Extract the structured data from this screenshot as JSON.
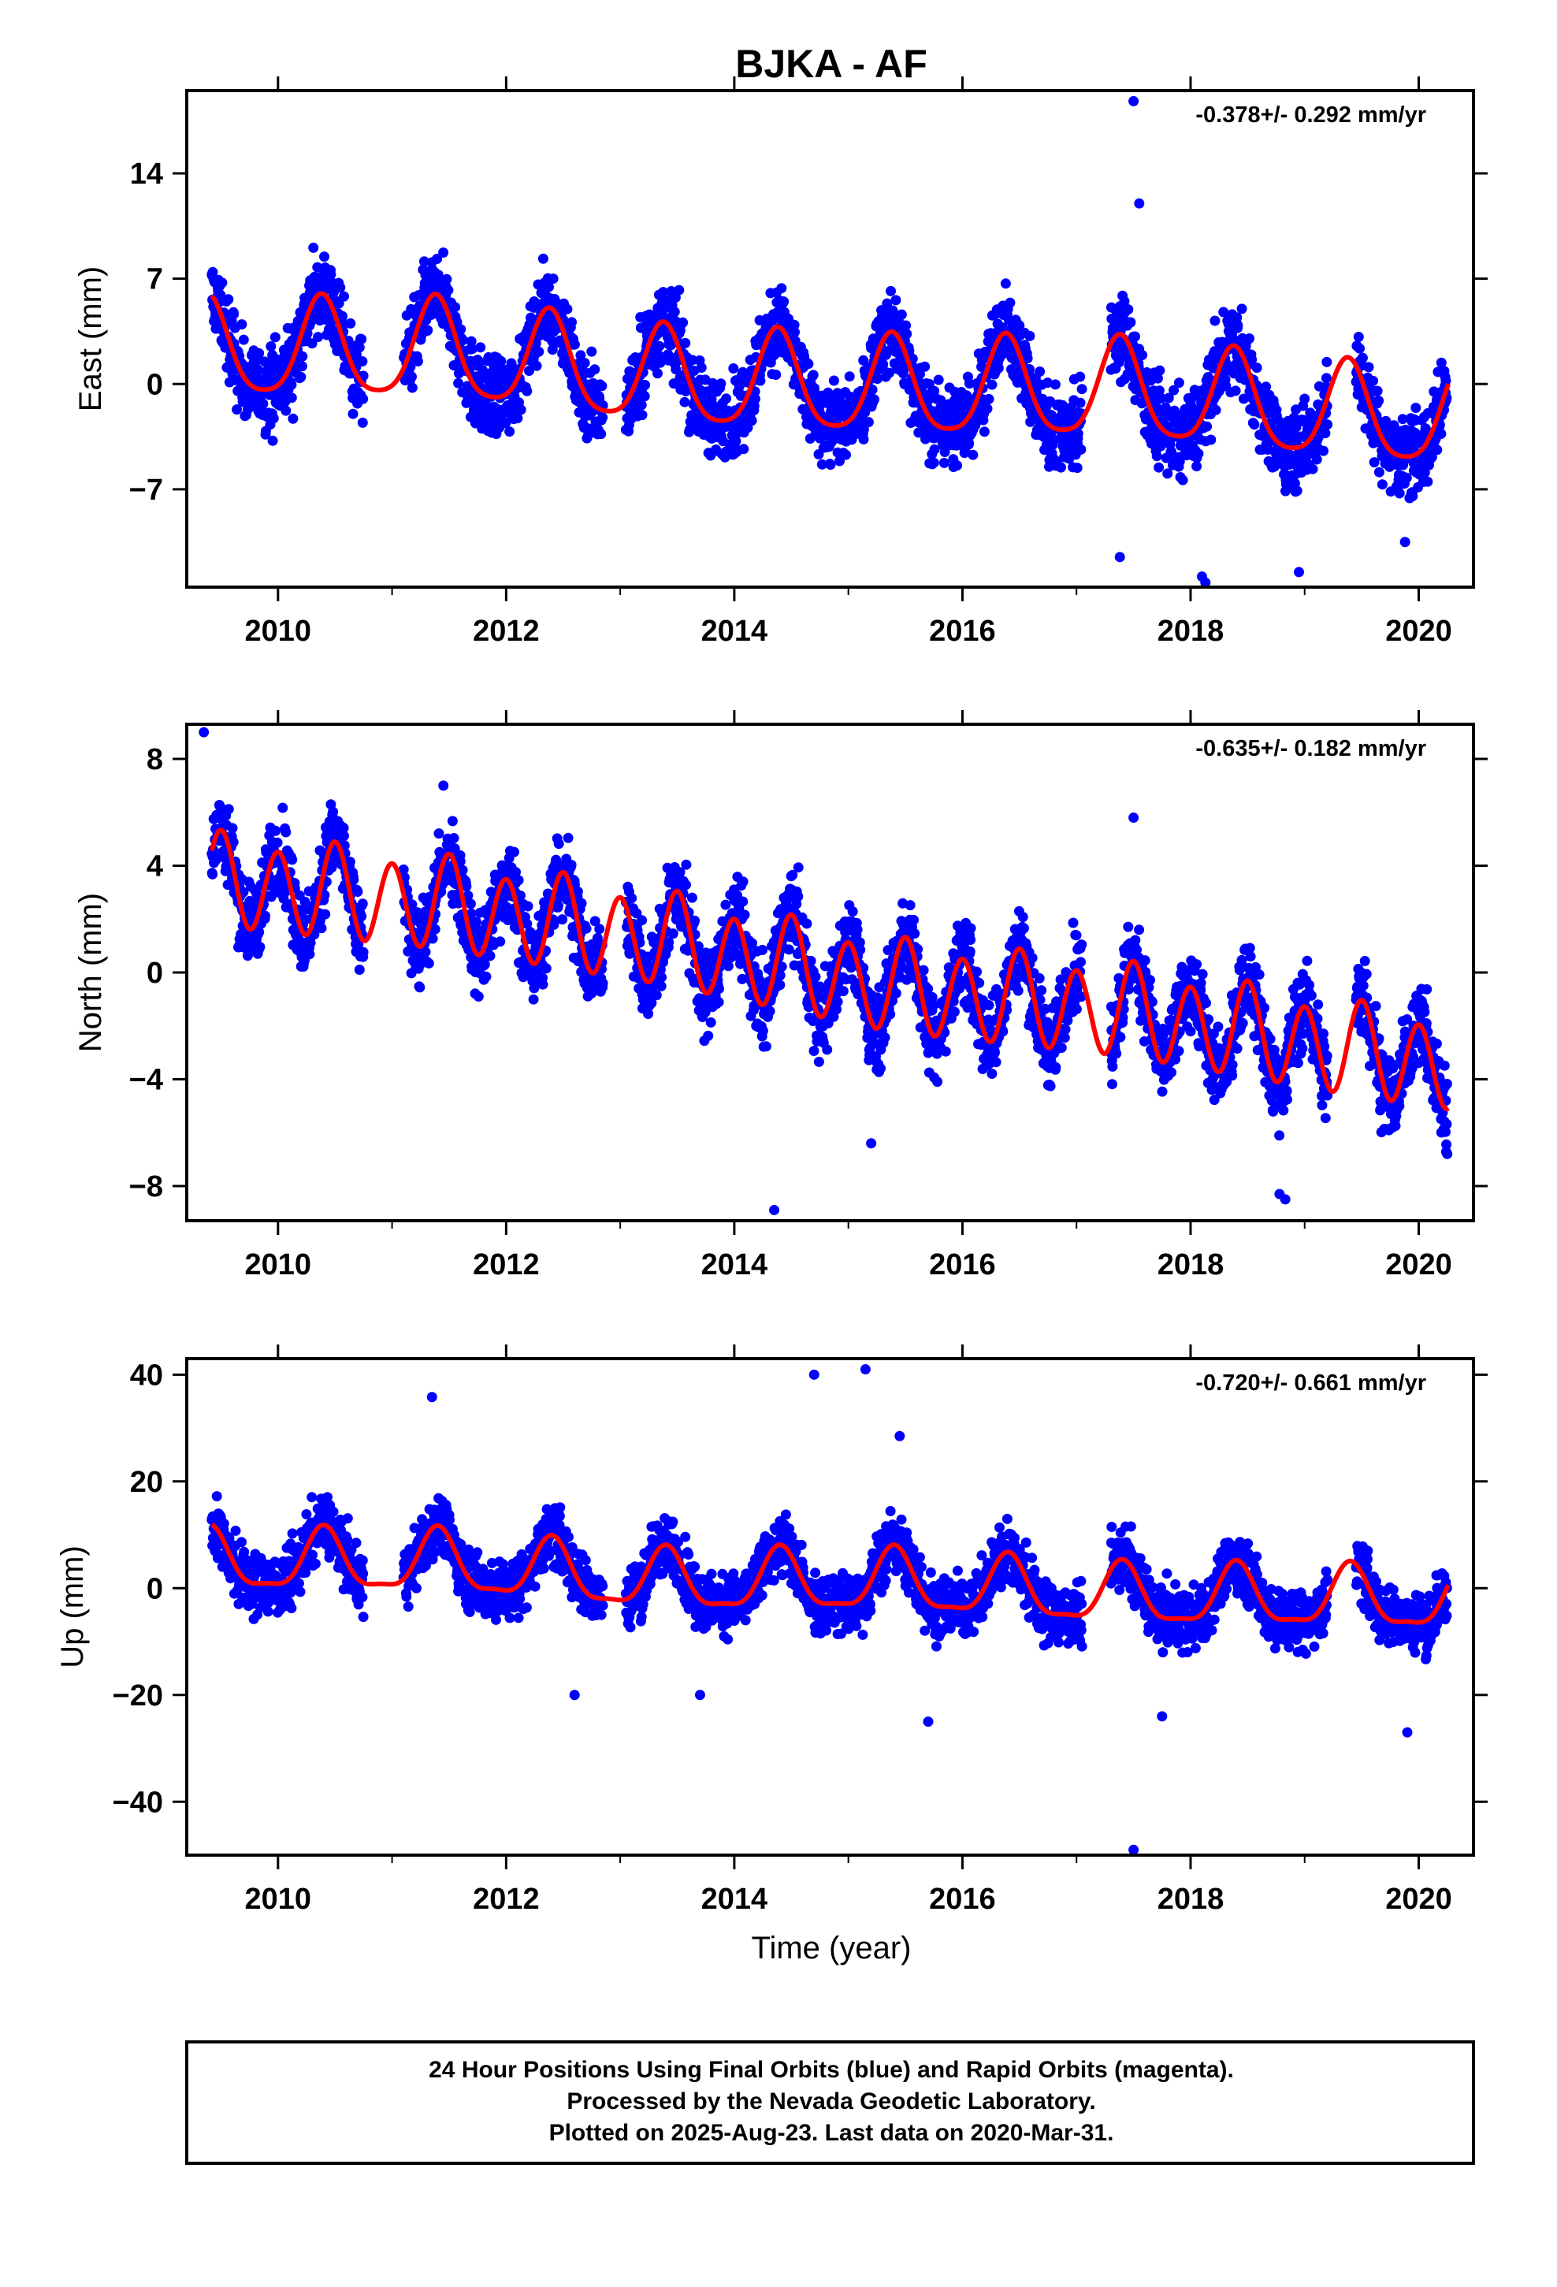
{
  "title": "BJKA - AF",
  "x_axis_label": "Time (year)",
  "footer": {
    "line1": "24 Hour Positions Using Final Orbits (blue) and Rapid Orbits (magenta).",
    "line2": "Processed by the Nevada Geodetic Laboratory.",
    "line3": "Plotted on 2025-Aug-23. Last data on 2020-Mar-31."
  },
  "colors": {
    "points": "#0000ff",
    "fit": "#ff0000",
    "axes": "#000000"
  },
  "chart_data": [
    {
      "type": "scatter",
      "panel": "east",
      "ylabel": "East (mm)",
      "rate_text": "-0.378+/- 0.292 mm/yr",
      "xlim": [
        2009.2,
        2020.48
      ],
      "ylim": [
        -13.5,
        19.5
      ],
      "xticks": [
        2010,
        2012,
        2014,
        2016,
        2018,
        2020
      ],
      "yticks": [
        -7,
        0,
        7,
        14
      ],
      "fit": {
        "offset": 0.2,
        "rate": -0.378,
        "t0": 2014.8,
        "annual_amp": 3.2,
        "annual_peak": 2010.38,
        "semi_amp": 0.6,
        "drift": [
          0,
          0.7,
          -0.4,
          -0.3,
          0.3,
          -0.5
        ]
      },
      "series": [
        {
          "name": "Final Orbits",
          "noise": 1.9
        }
      ],
      "outliers": [
        [
          2017.5,
          18.8
        ],
        [
          2017.55,
          12.0
        ],
        [
          2017.38,
          -11.5
        ],
        [
          2018.1,
          -12.8
        ],
        [
          2018.13,
          -13.2
        ],
        [
          2018.95,
          -12.5
        ],
        [
          2019.88,
          -10.5
        ]
      ]
    },
    {
      "type": "scatter",
      "panel": "north",
      "ylabel": "North (mm)",
      "rate_text": "-0.635+/- 0.182 mm/yr",
      "xlim": [
        2009.2,
        2020.48
      ],
      "ylim": [
        -9.3,
        9.3
      ],
      "xticks": [
        2010,
        2012,
        2014,
        2016,
        2018,
        2020
      ],
      "yticks": [
        -8,
        -4,
        0,
        4,
        8
      ],
      "fit": {
        "offset": 0.0,
        "rate": -0.635,
        "t0": 2014.8,
        "annual_amp": 0.3,
        "annual_peak": 2010.5,
        "semi_amp": 1.65,
        "drift": [
          0,
          0.4,
          0.3,
          -0.2,
          0.2,
          0.0
        ]
      },
      "series": [
        {
          "name": "Final Orbits",
          "noise": 1.1
        }
      ],
      "outliers": [
        [
          2009.35,
          9.0
        ],
        [
          2011.45,
          7.0
        ],
        [
          2017.5,
          5.8
        ],
        [
          2014.35,
          -8.9
        ],
        [
          2015.2,
          -6.4
        ],
        [
          2018.78,
          -8.3
        ],
        [
          2018.83,
          -8.5
        ],
        [
          2020.25,
          -6.8
        ]
      ]
    },
    {
      "type": "scatter",
      "panel": "up",
      "ylabel": "Up (mm)",
      "rate_text": "-0.720+/- 0.661 mm/yr",
      "xlim": [
        2009.2,
        2020.48
      ],
      "ylim": [
        -50,
        43
      ],
      "xticks": [
        2010,
        2012,
        2014,
        2016,
        2018,
        2020
      ],
      "yticks": [
        -40,
        -20,
        0,
        20,
        40
      ],
      "fit": {
        "offset": 1.0,
        "rate": -0.72,
        "t0": 2014.8,
        "annual_amp": 5.5,
        "annual_peak": 2010.4,
        "semi_amp": 1.6,
        "drift": [
          0,
          1.2,
          -1.0,
          0.5,
          -0.8,
          0.3
        ]
      },
      "series": [
        {
          "name": "Final Orbits",
          "noise": 4.0
        }
      ],
      "outliers": [
        [
          2011.35,
          35.8
        ],
        [
          2014.7,
          40.0
        ],
        [
          2015.15,
          41.0
        ],
        [
          2015.45,
          28.5
        ],
        [
          2017.5,
          -49.0
        ],
        [
          2015.7,
          -25.0
        ],
        [
          2017.75,
          -24.0
        ],
        [
          2012.6,
          -20.0
        ],
        [
          2013.7,
          -20.0
        ],
        [
          2019.9,
          -27.0
        ]
      ]
    }
  ]
}
